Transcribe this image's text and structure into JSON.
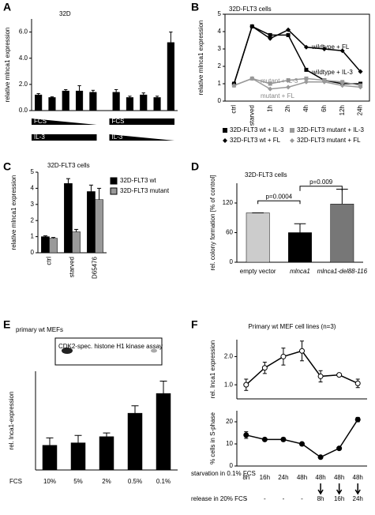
{
  "chart_data": [
    {
      "type": "bar",
      "label": "A",
      "title": "32D",
      "ylabel": "relative mlnca1 expression",
      "values": [
        1.2,
        1.0,
        1.5,
        1.5,
        1.4,
        1.4,
        1.0,
        1.2,
        1.0,
        5.2
      ],
      "errors": [
        0.1,
        0.05,
        0.1,
        0.4,
        0.15,
        0.2,
        0.1,
        0.15,
        0.1,
        0.8
      ],
      "color": "#000000",
      "ylim": [
        0,
        7
      ],
      "yticks": [
        {
          "value": 0,
          "label": "0.0"
        },
        {
          "value": 2,
          "label": "2.0"
        },
        {
          "value": 4,
          "label": "4.0"
        },
        {
          "value": 6,
          "label": "6.0"
        }
      ],
      "annotations": [
        "FCS",
        "IL-3",
        "FCS",
        "IL-3"
      ]
    },
    {
      "type": "line",
      "label": "B",
      "title": "32D-FLT3 cells",
      "ylabel": "relative mlnca1 expression",
      "categories": [
        "ctrl",
        "starved",
        "1h",
        "2h",
        "4h",
        "6h",
        "12h",
        "24h"
      ],
      "series": [
        {
          "name": "32D-FLT3 wt + IL-3",
          "color": "#000000",
          "marker": "square",
          "values": [
            1.0,
            4.3,
            3.8,
            3.8,
            1.8,
            1.2,
            1.0,
            1.0
          ]
        },
        {
          "name": "32D-FLT3 mutant + IL-3",
          "color": "#999999",
          "marker": "square",
          "values": [
            0.9,
            1.3,
            1.0,
            1.2,
            1.3,
            1.2,
            1.1,
            0.9
          ]
        },
        {
          "name": "32D-FLT3 wt + FL",
          "color": "#000000",
          "marker": "diamond",
          "values": [
            1.0,
            4.3,
            3.6,
            4.1,
            3.1,
            3.0,
            2.9,
            1.7
          ]
        },
        {
          "name": "32D-FLT3 mutant + FL",
          "color": "#999999",
          "marker": "diamond",
          "values": [
            0.9,
            1.3,
            0.7,
            0.8,
            1.1,
            1.1,
            0.9,
            0.8
          ]
        }
      ],
      "ylim": [
        0,
        5
      ],
      "yticks": [
        0,
        1,
        2,
        3,
        4,
        5
      ],
      "annotations": [
        "wildtype + FL",
        "wildtype + IL-3",
        "mutant + IL-3",
        "mutant + FL"
      ]
    },
    {
      "type": "bar",
      "label": "C",
      "title": "32D-FLT3 cells",
      "ylabel": "relative mlnca1 expression",
      "categories": [
        "ctrl",
        "starved",
        "D65476"
      ],
      "series": [
        {
          "name": "32D-FLT3 wt",
          "color": "#000000",
          "values": [
            1.0,
            4.3,
            3.8
          ],
          "errors": [
            0.05,
            0.3,
            0.4
          ]
        },
        {
          "name": "32D-FLT3 mutant",
          "color": "#999999",
          "values": [
            0.9,
            1.3,
            3.3
          ],
          "errors": [
            0.05,
            0.15,
            0.7
          ]
        }
      ],
      "ylim": [
        0,
        5
      ],
      "yticks": [
        0,
        1,
        2,
        3,
        4,
        5
      ]
    },
    {
      "type": "bar",
      "label": "D",
      "title": "32D-FLT3 cells",
      "ylabel": "rel. colony formation [% of control]",
      "categories": [
        "empty vector",
        "mlnca1",
        "mlnca1-del88-116"
      ],
      "values": [
        100,
        60,
        118
      ],
      "errors": [
        0,
        18,
        30
      ],
      "colors": [
        "#cccccc",
        "#000000",
        "#777777"
      ],
      "ylim": [
        0,
        160
      ],
      "yticks": [
        0,
        60,
        120
      ],
      "annotations": [
        "p=0.0004",
        "p=0.009"
      ]
    },
    {
      "type": "bar",
      "label": "E",
      "title": "primary wt MEFs",
      "ylabel": "rel. lnca1-expression",
      "xlabel": "FCS",
      "inset_label": "CDK2-spec. histone H1 kinase assay",
      "categories": [
        "10%",
        "5%",
        "2%",
        "0.5%",
        "0.1%"
      ],
      "values": [
        1.0,
        1.1,
        1.35,
        2.3,
        3.1
      ],
      "errors": [
        0.3,
        0.3,
        0.15,
        0.3,
        0.5
      ],
      "color": "#000000",
      "ylim": [
        0,
        4
      ]
    },
    {
      "type": "line",
      "label": "F",
      "title": "Primary wt MEF cell lines (n=3)",
      "ylabel": "rel. lnca1 expression",
      "series": [
        {
          "color": "#000000",
          "marker": "circle",
          "values": [
            1.0,
            1.6,
            2.0,
            2.2,
            1.3,
            1.35,
            1.05
          ],
          "errors": [
            0.2,
            0.2,
            0.3,
            0.35,
            0.2,
            0.05,
            0.15
          ]
        }
      ],
      "ylim": [
        0.5,
        2.6
      ],
      "yticks": [
        {
          "value": 1,
          "label": "1.0"
        },
        {
          "value": 2,
          "label": "2.0"
        }
      ]
    },
    {
      "type": "line",
      "ylabel": "% cells in S-phase",
      "categories": [
        "8h",
        "16h",
        "24h",
        "48h",
        "48h",
        "48h",
        "48h"
      ],
      "release": [
        "-",
        "-",
        "-",
        "-",
        "8h",
        "16h",
        "24h"
      ],
      "starvation_label": "starvation in 0.1% FCS",
      "release_label": "release in 20% FCS",
      "series": [
        {
          "color": "#000000",
          "marker": "circle-filled",
          "values": [
            14,
            12,
            12,
            10,
            4,
            8,
            21
          ],
          "errors": [
            1.5,
            0.5,
            0.8,
            0.5,
            0.4,
            0.5,
            1
          ]
        }
      ],
      "ylim": [
        0,
        25
      ],
      "yticks": [
        0,
        10,
        20
      ]
    }
  ]
}
